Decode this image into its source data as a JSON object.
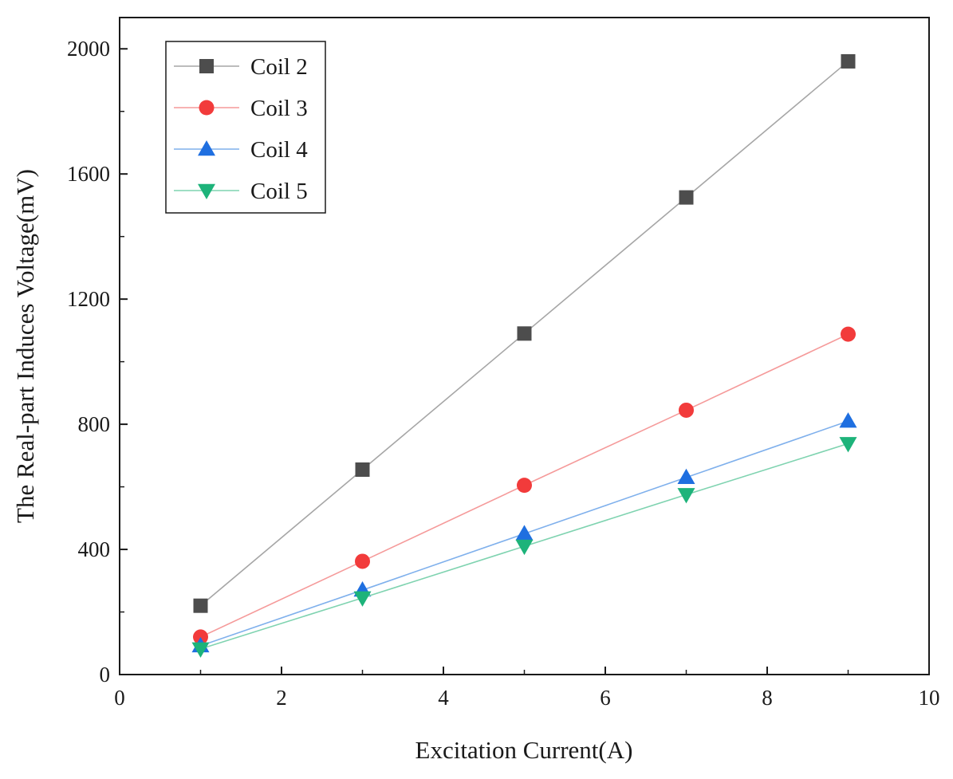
{
  "chart_data": {
    "type": "line",
    "xlabel": "Excitation Current(A)",
    "ylabel": "The Real-part Induces Voltage(mV)",
    "xlim": [
      0,
      10
    ],
    "ylim": [
      0,
      2100
    ],
    "xticks": [
      0,
      2,
      4,
      6,
      8,
      10
    ],
    "yticks": [
      0,
      400,
      800,
      1200,
      1600,
      2000
    ],
    "legend_position": "top-left",
    "grid": false,
    "x": [
      1,
      3,
      5,
      7,
      9
    ],
    "series": [
      {
        "name": "Coil 2",
        "values": [
          220,
          655,
          1090,
          1525,
          1960
        ],
        "color": "#4d4d4d",
        "line_color": "#a6a6a6",
        "marker": "square"
      },
      {
        "name": "Coil 3",
        "values": [
          120,
          362,
          605,
          845,
          1088
        ],
        "color": "#f23b3b",
        "line_color": "#f59a9a",
        "marker": "circle"
      },
      {
        "name": "Coil 4",
        "values": [
          92,
          270,
          450,
          630,
          810
        ],
        "color": "#1f6fe0",
        "line_color": "#7fb0ec",
        "marker": "triangle-up"
      },
      {
        "name": "Coil 5",
        "values": [
          82,
          245,
          410,
          575,
          738
        ],
        "color": "#1db37a",
        "line_color": "#7fd3b0",
        "marker": "triangle-down"
      }
    ]
  }
}
